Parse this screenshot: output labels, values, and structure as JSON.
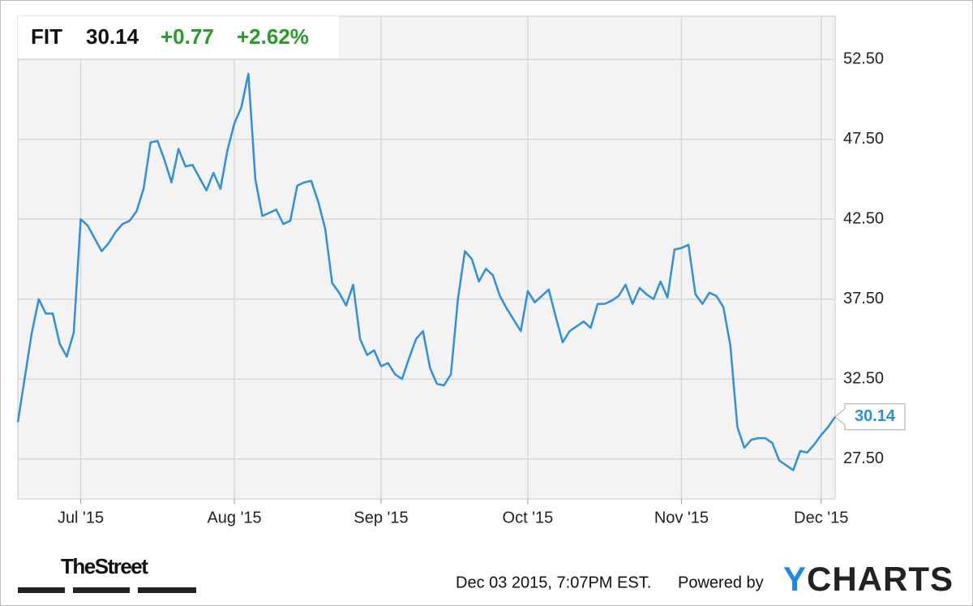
{
  "header": {
    "symbol": "FIT",
    "price": "30.14",
    "change": "+0.77",
    "change_pct": "+2.62%"
  },
  "chart_data": {
    "type": "line",
    "color": "#2e8fe0",
    "grid": true,
    "categories": [
      null,
      null,
      null,
      null,
      null,
      null,
      null,
      null,
      null,
      "Jul '15",
      null,
      null,
      null,
      null,
      null,
      null,
      null,
      null,
      null,
      null,
      null,
      null,
      null,
      null,
      null,
      null,
      null,
      null,
      null,
      null,
      null,
      "Aug '15",
      null,
      null,
      null,
      null,
      null,
      null,
      null,
      null,
      null,
      null,
      null,
      null,
      null,
      null,
      null,
      null,
      null,
      null,
      null,
      null,
      "Sep '15",
      null,
      null,
      null,
      null,
      null,
      null,
      null,
      null,
      null,
      null,
      null,
      null,
      null,
      null,
      null,
      null,
      null,
      null,
      null,
      null,
      "Oct '15",
      null,
      null,
      null,
      null,
      null,
      null,
      null,
      null,
      null,
      null,
      null,
      null,
      null,
      null,
      null,
      null,
      null,
      null,
      null,
      null,
      null,
      "Nov '15",
      null,
      null,
      null,
      null,
      null,
      null,
      null,
      null,
      null,
      null,
      null,
      null,
      null,
      null,
      null,
      null,
      null,
      null,
      null,
      "Dec '15",
      null,
      null
    ],
    "values": [
      29.8,
      32.6,
      35.4,
      37.5,
      36.6,
      36.6,
      34.7,
      33.9,
      35.4,
      42.5,
      42.1,
      41.3,
      40.5,
      41.0,
      41.7,
      42.2,
      42.4,
      43.0,
      44.4,
      47.3,
      47.4,
      46.2,
      44.8,
      46.9,
      45.8,
      45.9,
      45.1,
      44.3,
      45.4,
      44.4,
      46.8,
      48.5,
      49.5,
      51.6,
      45.0,
      42.7,
      42.9,
      43.1,
      42.2,
      42.4,
      44.6,
      44.8,
      44.9,
      43.6,
      41.9,
      38.5,
      37.9,
      37.1,
      38.4,
      35.0,
      34.0,
      34.3,
      33.3,
      33.5,
      32.8,
      32.5,
      33.8,
      35.0,
      35.5,
      33.2,
      32.2,
      32.1,
      32.8,
      37.5,
      40.5,
      40.0,
      38.6,
      39.4,
      39.0,
      37.7,
      36.9,
      36.2,
      35.5,
      38.0,
      37.3,
      37.7,
      38.1,
      36.4,
      34.8,
      35.5,
      35.8,
      36.1,
      35.7,
      37.2,
      37.2,
      37.4,
      37.7,
      38.4,
      37.2,
      38.2,
      37.8,
      37.5,
      38.6,
      37.6,
      40.6,
      40.7,
      40.9,
      37.8,
      37.2,
      37.9,
      37.7,
      37.0,
      34.6,
      29.5,
      28.2,
      28.7,
      28.8,
      28.8,
      28.5,
      27.4,
      27.1,
      26.8,
      28.0,
      27.9,
      28.4,
      29.0,
      29.5,
      30.14
    ],
    "ylim": [
      25,
      55.2
    ],
    "yticks": [
      {
        "value": 27.5,
        "label": "27.50"
      },
      {
        "value": 32.5,
        "label": "32.50"
      },
      {
        "value": 37.5,
        "label": "37.50"
      },
      {
        "value": 42.5,
        "label": "42.50"
      },
      {
        "value": 47.5,
        "label": "47.50"
      },
      {
        "value": 52.5,
        "label": "52.50"
      }
    ]
  },
  "footer": {
    "brand": "TheStreet",
    "timestamp": "Dec 03 2015, 7:07PM EST.",
    "powered": "Powered by",
    "logo": "YCHARTS"
  }
}
